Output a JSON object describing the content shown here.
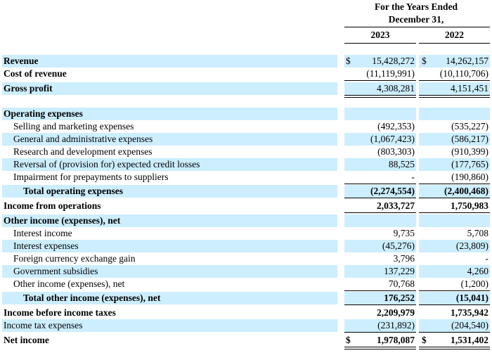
{
  "header": {
    "period": "For the Years Ended",
    "date": "December 31,",
    "year1": "2023",
    "year2": "2022"
  },
  "currency_symbol": "$",
  "rows": [
    {
      "label": "Revenue",
      "v1": "15,428,272",
      "v2": "14,262,157"
    },
    {
      "label": "Cost of revenue",
      "v1": "(11,119,991)",
      "v2": "(10,110,706)"
    },
    {
      "label": "Gross profit",
      "v1": "4,308,281",
      "v2": "4,151,451"
    },
    {
      "label": "Operating expenses"
    },
    {
      "label": "Selling and marketing expenses",
      "v1": "(492,353)",
      "v2": "(535,227)"
    },
    {
      "label": "General and administrative expenses",
      "v1": "(1,067,423)",
      "v2": "(586,217)"
    },
    {
      "label": "Research and development expenses",
      "v1": "(803,303)",
      "v2": "(910,399)"
    },
    {
      "label": "Reversal of (provision for) expected credit losses",
      "v1": "88,525",
      "v2": "(177,765)"
    },
    {
      "label": "Impairment for prepayments to suppliers",
      "v1": "-",
      "v2": "(190,860)"
    },
    {
      "label": "Total operating expenses",
      "v1": "(2,274,554)",
      "v2": "(2,400,468)"
    },
    {
      "label": "Income from operations",
      "v1": "2,033,727",
      "v2": "1,750,983"
    },
    {
      "label": "Other income (expenses), net"
    },
    {
      "label": "Interest income",
      "v1": "9,735",
      "v2": "5,708"
    },
    {
      "label": "Interest expenses",
      "v1": "(45,276)",
      "v2": "(23,809)"
    },
    {
      "label": "Foreign currency exchange gain",
      "v1": "3,796",
      "v2": "-"
    },
    {
      "label": "Government subsidies",
      "v1": "137,229",
      "v2": "4,260"
    },
    {
      "label": "Other income (expenses), net",
      "v1": "70,768",
      "v2": "(1,200)"
    },
    {
      "label": "Total other income (expenses), net",
      "v1": "176,252",
      "v2": "(15,041)"
    },
    {
      "label": "Income before income taxes",
      "v1": "2,209,979",
      "v2": "1,735,942"
    },
    {
      "label": "Income tax expenses",
      "v1": "(231,892)",
      "v2": "(204,540)"
    },
    {
      "label": "Net income",
      "v1": "1,978,087",
      "v2": "1,531,402"
    }
  ]
}
